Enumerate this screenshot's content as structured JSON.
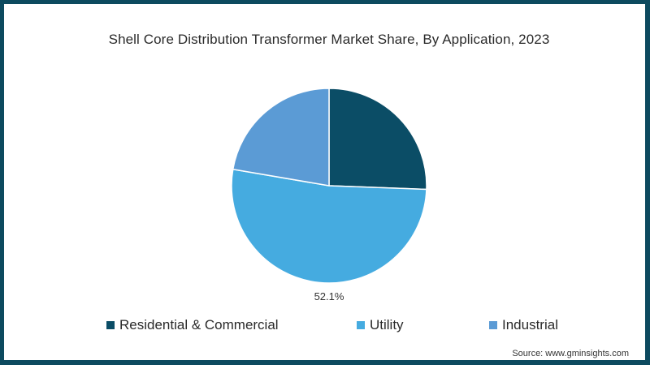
{
  "chart_data": {
    "type": "pie",
    "title": "Shell Core Distribution Transformer Market Share, By Application, 2023",
    "categories": [
      "Residential & Commercial",
      "Utility",
      "Industrial"
    ],
    "values": [
      25.6,
      52.1,
      22.3
    ],
    "colors": [
      "#0b4d66",
      "#45abe0",
      "#5b9bd5"
    ],
    "data_labels": [
      "",
      "52.1%",
      ""
    ],
    "legend_position": "bottom",
    "start_angle_deg": 0,
    "direction": "clockwise"
  },
  "title": "Shell Core Distribution Transformer Market Share, By Application, 2023",
  "label_utility": "52.1%",
  "legend": [
    {
      "label": "Residential & Commercial",
      "color": "#0b4d66"
    },
    {
      "label": "Utility",
      "color": "#45abe0"
    },
    {
      "label": "Industrial",
      "color": "#5b9bd5"
    }
  ],
  "source": "Source: www.gminsights.com",
  "colors": {
    "border": "#0d4a5f"
  }
}
